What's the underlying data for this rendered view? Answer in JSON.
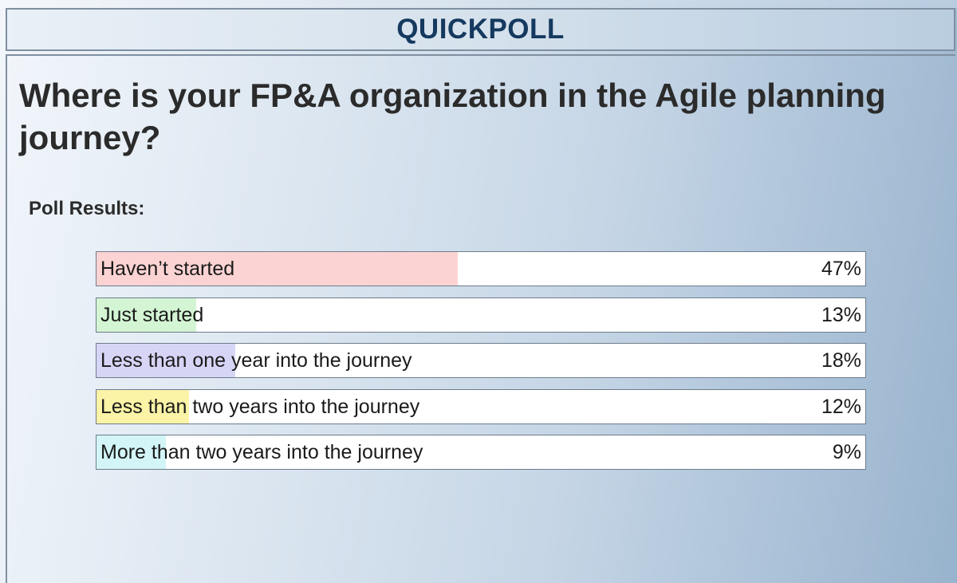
{
  "header": {
    "title": "QUICKPOLL"
  },
  "poll": {
    "question": "Where is your FP&A organization in the Agile planning journey?",
    "results_label": "Poll Results:",
    "options": [
      {
        "label": "Haven’t started",
        "percent": "47%",
        "fraction": 0.47,
        "color": "#fcd3d3"
      },
      {
        "label": "Just started",
        "percent": "13%",
        "fraction": 0.13,
        "color": "#d3f5d3"
      },
      {
        "label": "Less than one year into the journey",
        "percent": "18%",
        "fraction": 0.18,
        "color": "#d7d5f6"
      },
      {
        "label": "Less than two years into the journey",
        "percent": "12%",
        "fraction": 0.12,
        "color": "#fbf3a6"
      },
      {
        "label": "More than two years into the journey",
        "percent": "9%",
        "fraction": 0.09,
        "color": "#d3f5f7"
      }
    ]
  }
}
